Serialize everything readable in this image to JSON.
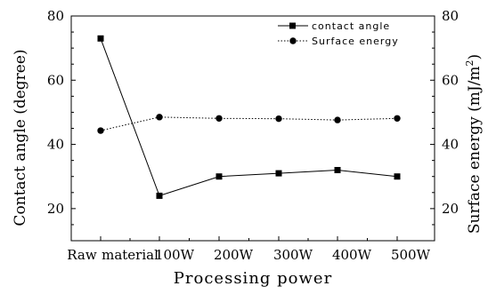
{
  "chart_data": {
    "type": "line",
    "categories": [
      "Raw material",
      "100W",
      "200W",
      "300W",
      "400W",
      "500W"
    ],
    "x_tick_labels": [
      "Raw",
      "material",
      "100W",
      "200W",
      "300W",
      "400W",
      "500W"
    ],
    "xlabel": "Processing power",
    "ylabel_left": "Contact angle (degree)",
    "ylabel_right_main": "Surface energy (mJ/m",
    "ylabel_right_sup": "2",
    "ylabel_right_end": ")",
    "ylim_left": [
      10,
      80
    ],
    "ylim_right": [
      10,
      80
    ],
    "yticks_left": [
      20,
      40,
      60,
      80
    ],
    "yticks_right": [
      20,
      40,
      60,
      80
    ],
    "legend_position": "top-right",
    "grid": false,
    "series": [
      {
        "name": "contact angle",
        "axis": "left",
        "marker": "square",
        "line_style": "solid",
        "values": [
          73,
          24,
          30,
          31,
          32,
          30
        ]
      },
      {
        "name": "Surface energy",
        "axis": "right",
        "marker": "circle",
        "line_style": "dotted",
        "values": [
          44.3,
          48.5,
          48.1,
          48.0,
          47.6,
          48.1
        ]
      }
    ]
  }
}
